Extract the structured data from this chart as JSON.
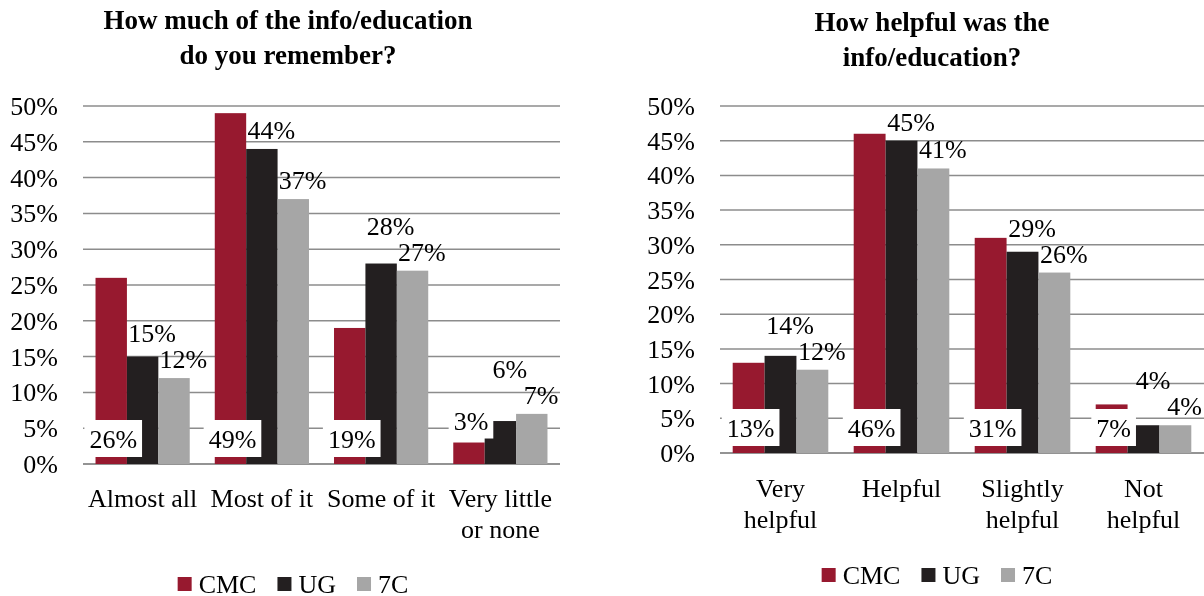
{
  "chart_data": [
    {
      "type": "bar",
      "title": "How much of the info/education do you remember?",
      "categories": [
        "Almost all",
        "Most of it",
        "Some of it",
        "Very little or none"
      ],
      "series": [
        {
          "name": "CMC",
          "color": "#97192f",
          "values": [
            26,
            49,
            19,
            3
          ],
          "value_labels": [
            "26%",
            "49%",
            "19%",
            "3%"
          ]
        },
        {
          "name": "UG",
          "color": "#231f20",
          "values": [
            15,
            44,
            28,
            6
          ],
          "value_labels": [
            "15%",
            "44%",
            "28%",
            "6%"
          ]
        },
        {
          "name": "7C",
          "color": "#a6a6a6",
          "values": [
            12,
            37,
            27,
            7
          ],
          "value_labels": [
            "12%",
            "37%",
            "27%",
            "7%"
          ]
        }
      ],
      "ylim": [
        0,
        50
      ],
      "yticks": [
        {
          "value": 0,
          "label": "0%"
        },
        {
          "value": 5,
          "label": "5%"
        },
        {
          "value": 10,
          "label": "10%"
        },
        {
          "value": 15,
          "label": "15%"
        },
        {
          "value": 20,
          "label": "20%"
        },
        {
          "value": 25,
          "label": "25%"
        },
        {
          "value": 30,
          "label": "30%"
        },
        {
          "value": 35,
          "label": "35%"
        },
        {
          "value": 40,
          "label": "40%"
        },
        {
          "value": 45,
          "label": "45%"
        },
        {
          "value": 50,
          "label": "50%"
        }
      ],
      "grid": "y",
      "legend": "bottom"
    },
    {
      "type": "bar",
      "title": "How helpful was the info/education?",
      "categories": [
        "Very helpful",
        "Helpful",
        "Slightly helpful",
        "Not helpful"
      ],
      "series": [
        {
          "name": "CMC",
          "color": "#97192f",
          "values": [
            13,
            46,
            31,
            7
          ],
          "value_labels": [
            "13%",
            "46%",
            "31%",
            "7%"
          ]
        },
        {
          "name": "UG",
          "color": "#231f20",
          "values": [
            14,
            45,
            29,
            4
          ],
          "value_labels": [
            "14%",
            "45%",
            "29%",
            "4%"
          ]
        },
        {
          "name": "7C",
          "color": "#a6a6a6",
          "values": [
            12,
            41,
            26,
            4
          ],
          "value_labels": [
            "12%",
            "41%",
            "26%",
            "4%"
          ]
        }
      ],
      "ylim": [
        0,
        50
      ],
      "yticks": [
        {
          "value": 0,
          "label": "0%"
        },
        {
          "value": 5,
          "label": "5%"
        },
        {
          "value": 10,
          "label": "10%"
        },
        {
          "value": 15,
          "label": "15%"
        },
        {
          "value": 20,
          "label": "20%"
        },
        {
          "value": 25,
          "label": "25%"
        },
        {
          "value": 30,
          "label": "30%"
        },
        {
          "value": 35,
          "label": "35%"
        },
        {
          "value": 40,
          "label": "40%"
        },
        {
          "value": 45,
          "label": "45%"
        },
        {
          "value": 50,
          "label": "50%"
        }
      ],
      "grid": "y",
      "legend": "bottom"
    }
  ]
}
